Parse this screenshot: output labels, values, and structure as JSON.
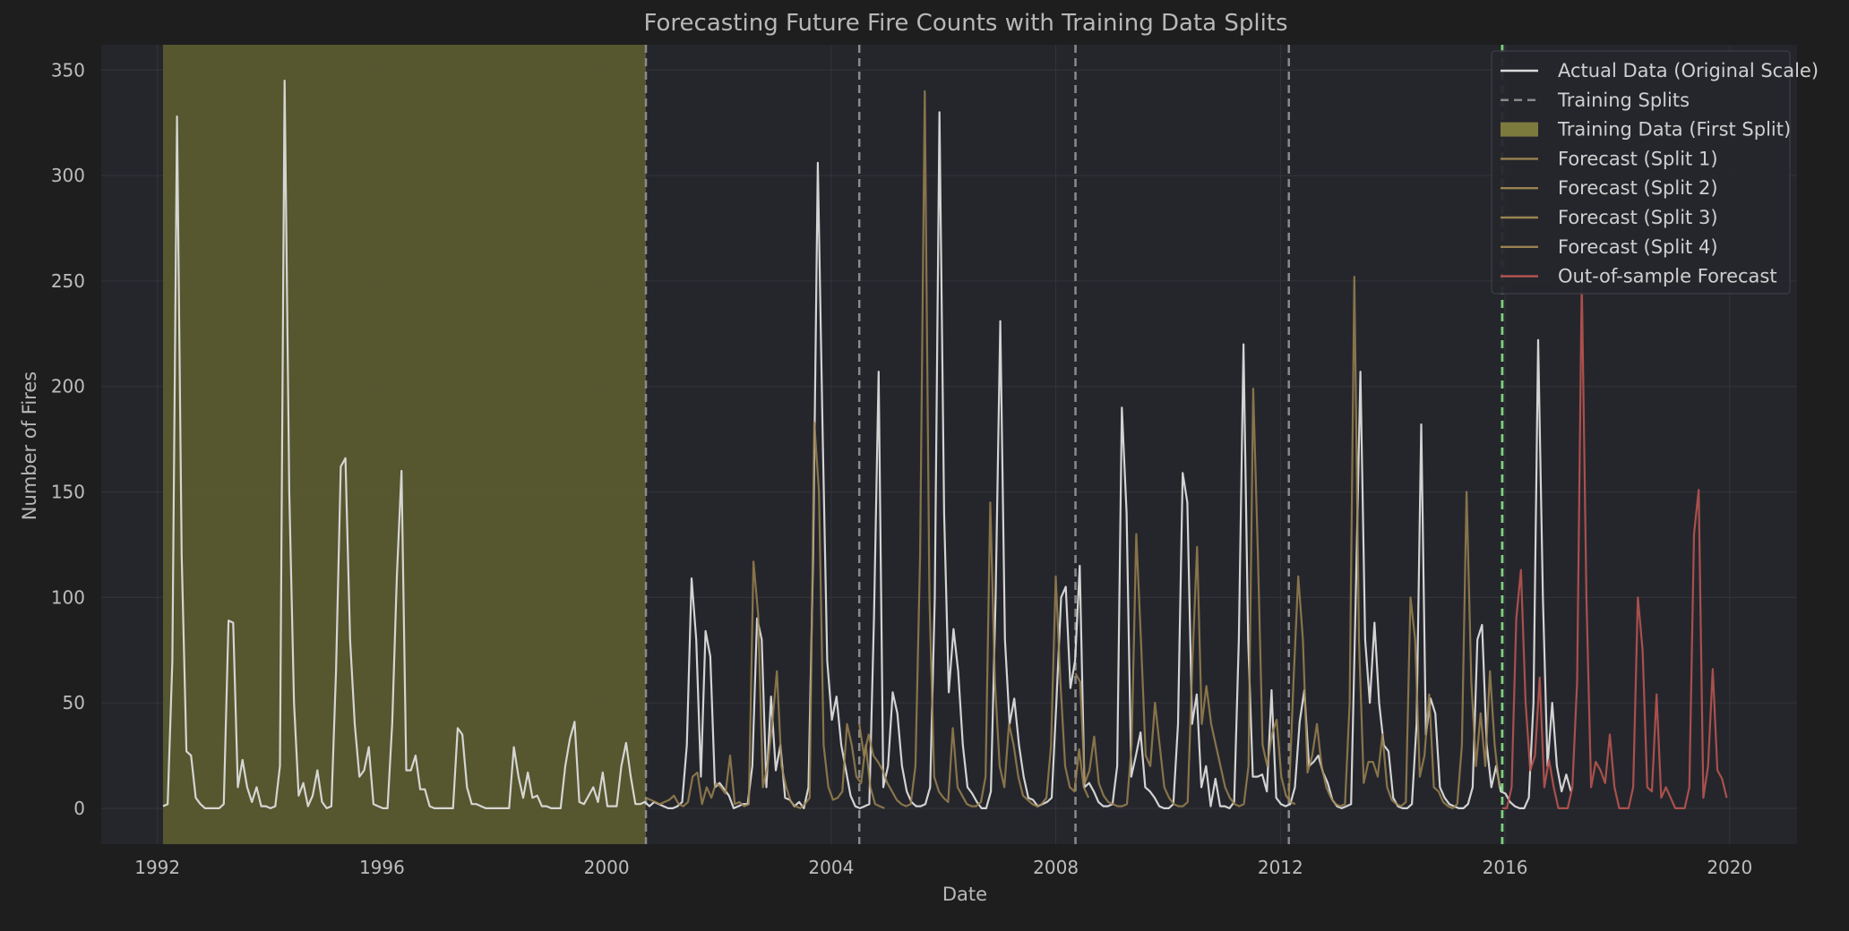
{
  "chart_data": {
    "type": "line",
    "title": "Forecasting Future Fire Counts with Training Data Splits",
    "xlabel": "Date",
    "ylabel": "Number of Fires",
    "xlim": [
      1991.0,
      2021.2
    ],
    "ylim": [
      -17,
      362
    ],
    "x_ticks": [
      1992,
      1996,
      2000,
      2004,
      2008,
      2012,
      2016,
      2020
    ],
    "y_ticks": [
      0,
      50,
      100,
      150,
      200,
      250,
      300,
      350
    ],
    "grid": true,
    "legend_position": "top-right",
    "training_region": {
      "label": "Training Data (First Split)",
      "start": 1992.1,
      "end": 2000.7,
      "color": "#5a5a30"
    },
    "split_lines": {
      "label": "Training Splits",
      "dates": [
        2000.7,
        2004.5,
        2008.35,
        2012.15
      ],
      "color": "#8a8a8a"
    },
    "forecast_start": {
      "date": 2015.95,
      "color": "#7fd17f"
    },
    "colors": {
      "background": "#1e1e1f",
      "plot_background": "#25262c",
      "grid": "#34353b",
      "actual": "#dcdcdc",
      "forecast": "#9a8250",
      "oos": "#b85550"
    },
    "series": [
      {
        "name": "Actual Data (Original Scale)",
        "color": "#dcdcdc",
        "x_start": 1992.1,
        "step": 0.0833,
        "values": [
          1,
          2,
          70,
          328,
          120,
          27,
          25,
          5,
          2,
          0,
          0,
          0,
          0,
          2,
          89,
          88,
          10,
          23,
          10,
          3,
          10,
          1,
          1,
          0,
          1,
          20,
          345,
          150,
          50,
          6,
          12,
          1,
          6,
          18,
          3,
          0,
          1,
          65,
          162,
          166,
          80,
          40,
          15,
          18,
          29,
          2,
          1,
          0,
          0,
          40,
          110,
          160,
          18,
          18,
          25,
          9,
          9,
          1,
          0,
          0,
          0,
          0,
          0,
          38,
          35,
          10,
          2,
          2,
          1,
          0,
          0,
          0,
          0,
          0,
          0,
          29,
          15,
          5,
          17,
          5,
          6,
          1,
          1,
          0,
          0,
          0,
          20,
          33,
          41,
          3,
          2,
          6,
          10,
          3,
          17,
          1,
          1,
          1,
          20,
          31,
          15,
          2,
          2,
          3,
          1,
          3,
          2,
          1,
          0,
          0,
          1,
          3,
          30,
          109,
          80,
          15,
          84,
          72,
          10,
          12,
          9,
          6,
          0,
          1,
          2,
          2,
          20,
          90,
          80,
          10,
          53,
          18,
          30,
          5,
          4,
          1,
          3,
          0,
          10,
          120,
          306,
          180,
          70,
          42,
          53,
          30,
          18,
          6,
          1,
          0,
          1,
          2,
          90,
          207,
          10,
          20,
          55,
          45,
          20,
          8,
          3,
          1,
          1,
          2,
          10,
          100,
          330,
          140,
          55,
          85,
          65,
          30,
          10,
          7,
          3,
          0,
          0,
          8,
          100,
          231,
          80,
          40,
          52,
          30,
          15,
          5,
          4,
          1,
          2,
          3,
          5,
          50,
          100,
          105,
          57,
          70,
          115,
          10,
          12,
          8,
          3,
          1,
          1,
          2,
          20,
          190,
          140,
          15,
          25,
          36,
          10,
          8,
          5,
          1,
          0,
          0,
          2,
          40,
          159,
          145,
          40,
          54,
          10,
          20,
          1,
          14,
          1,
          1,
          0,
          3,
          80,
          220,
          80,
          15,
          15,
          16,
          8,
          56,
          5,
          2,
          1,
          2,
          10,
          41,
          56,
          20,
          22,
          25,
          17,
          12,
          4,
          1,
          0,
          1,
          2,
          100,
          207,
          80,
          50,
          88,
          50,
          30,
          27,
          5,
          1,
          0,
          0,
          2,
          40,
          182,
          35,
          52,
          45,
          10,
          5,
          2,
          1,
          0,
          0,
          2,
          10,
          80,
          87,
          30,
          10,
          20,
          8,
          7,
          3,
          1,
          0,
          0,
          5,
          50,
          222,
          100,
          20,
          50,
          20,
          8,
          16,
          8
        ]
      },
      {
        "name": "Forecast (Split 1)",
        "color": "#9a8250",
        "x_start": 2000.7,
        "step": 0.0833,
        "values": [
          5,
          4,
          3,
          2,
          3,
          4,
          6,
          2,
          1,
          3,
          15,
          17,
          2,
          10,
          5,
          12,
          10,
          7,
          25,
          2,
          3,
          1,
          2,
          117,
          92,
          10,
          20,
          40,
          65,
          20,
          10,
          3,
          1,
          0,
          2,
          5,
          183,
          150,
          30,
          10,
          4,
          5,
          8,
          40,
          30,
          15,
          12,
          30,
          10,
          2,
          1,
          0
        ]
      },
      {
        "name": "Forecast (Split 2)",
        "color": "#9a8250",
        "x_start": 2004.5,
        "step": 0.0833,
        "values": [
          40,
          25,
          35,
          25,
          22,
          18,
          12,
          8,
          4,
          2,
          1,
          2,
          20,
          120,
          340,
          100,
          15,
          8,
          5,
          3,
          38,
          10,
          6,
          2,
          1,
          1,
          3,
          15,
          145,
          60,
          20,
          10,
          40,
          30,
          15,
          6,
          4,
          2,
          1,
          2,
          5,
          30,
          110,
          60,
          20,
          10,
          8,
          28,
          10,
          5
        ]
      },
      {
        "name": "Forecast (Split 3)",
        "color": "#9a8250",
        "x_start": 2008.35,
        "step": 0.0833,
        "values": [
          64,
          60,
          12,
          18,
          34,
          12,
          6,
          3,
          2,
          1,
          1,
          2,
          30,
          130,
          80,
          25,
          20,
          50,
          30,
          10,
          5,
          2,
          1,
          1,
          3,
          70,
          124,
          40,
          58,
          40,
          30,
          20,
          10,
          5,
          2,
          1,
          2,
          20,
          199,
          120,
          30,
          20,
          35,
          42,
          15,
          6,
          3,
          2
        ]
      },
      {
        "name": "Forecast (Split 4)",
        "color": "#9a8250",
        "x_start": 2012.15,
        "step": 0.0833,
        "values": [
          5,
          60,
          110,
          80,
          17,
          25,
          40,
          20,
          10,
          5,
          2,
          1,
          2,
          50,
          252,
          80,
          12,
          22,
          22,
          15,
          35,
          10,
          4,
          2,
          1,
          3,
          100,
          80,
          15,
          25,
          54,
          10,
          8,
          3,
          1,
          0,
          2,
          30,
          150,
          60,
          20,
          45,
          20,
          65,
          30,
          10
        ]
      },
      {
        "name": "Out-of-sample Forecast",
        "color": "#b85550",
        "x_start": 2015.95,
        "step": 0.0833,
        "values": [
          0,
          0,
          10,
          90,
          113,
          50,
          18,
          25,
          62,
          10,
          23,
          10,
          0,
          0,
          0,
          10,
          60,
          250,
          100,
          10,
          22,
          18,
          12,
          35,
          10,
          0,
          0,
          0,
          10,
          100,
          75,
          10,
          8,
          54,
          5,
          10,
          5,
          0,
          0,
          0,
          10,
          130,
          151,
          5,
          20,
          66,
          18,
          14,
          5
        ]
      }
    ]
  }
}
